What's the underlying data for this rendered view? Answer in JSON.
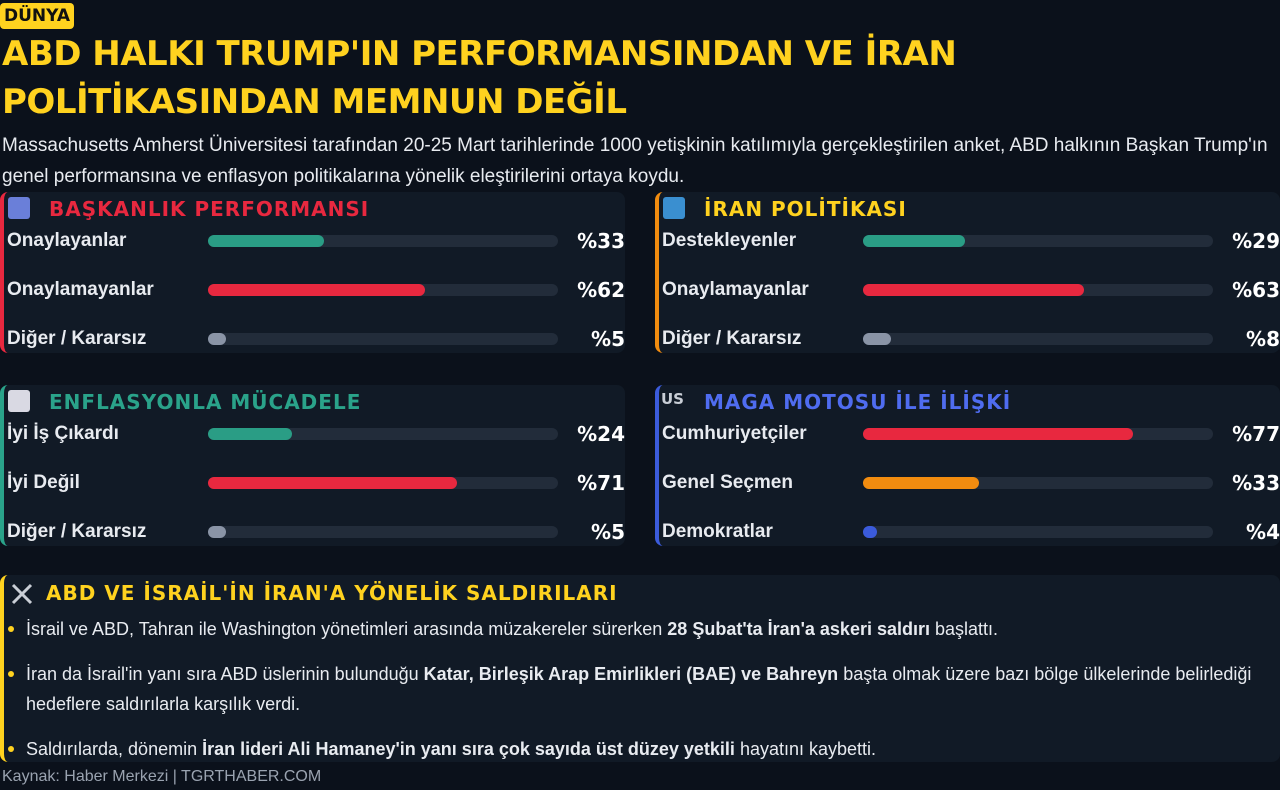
{
  "header": {
    "tag": "DÜNYA",
    "title": "ABD HALKI TRUMP'IN PERFORMANSINDAN VE İRAN POLİTİKASINDAN MEMNUN DEĞİL",
    "lead": "Massachusetts Amherst Üniversitesi tarafından 20-25 Mart tarihlerinde 1000 yetişkinin katılımıyla gerçekleştirilen anket, ABD halkının Başkan Trump'ın genel performansına ve enflasyon politikalarına yönelik eleştirilerini ortaya koydu."
  },
  "chart_data": [
    {
      "type": "bar",
      "title": "BAŞKANLIK PERFORMANSI",
      "title_color": "#e8283f",
      "accent": "#e8283f",
      "categories": [
        "Onaylayanlar",
        "Onaylamayanlar",
        "Diğer / Kararsız"
      ],
      "values": [
        33,
        62,
        5
      ],
      "value_labels": [
        "%33",
        "%62",
        "%5"
      ],
      "colors": [
        "#2a9d85",
        "#e8283f",
        "#8a94a6"
      ],
      "xlim": [
        0,
        100
      ]
    },
    {
      "type": "bar",
      "title": "İRAN POLİTİKASI",
      "title_color": "#ffd21f",
      "accent": "#f28c0f",
      "categories": [
        "Destekleyenler",
        "Onaylamayanlar",
        "Diğer / Kararsız"
      ],
      "values": [
        29,
        63,
        8
      ],
      "value_labels": [
        "%29",
        "%63",
        "%8"
      ],
      "colors": [
        "#2a9d85",
        "#e8283f",
        "#8a94a6"
      ],
      "xlim": [
        0,
        100
      ]
    },
    {
      "type": "bar",
      "title": "ENFLASYONLA MÜCADELE",
      "title_color": "#2aa38a",
      "accent": "#2aa38a",
      "categories": [
        "İyi İş Çıkardı",
        "İyi Değil",
        "Diğer / Kararsız"
      ],
      "values": [
        24,
        71,
        5
      ],
      "value_labels": [
        "%24",
        "%71",
        "%5"
      ],
      "colors": [
        "#2a9d85",
        "#e8283f",
        "#8a94a6"
      ],
      "xlim": [
        0,
        100
      ]
    },
    {
      "type": "bar",
      "title": "MAGA MOTOSU İLE İLİŞKİ",
      "icon": "US",
      "title_color": "#4f6cf0",
      "accent": "#3b5bdb",
      "categories": [
        "Cumhuriyetçiler",
        "Genel Seçmen",
        "Demokratlar"
      ],
      "values": [
        77,
        33,
        4
      ],
      "value_labels": [
        "%77",
        "%33",
        "%4"
      ],
      "colors": [
        "#e8283f",
        "#f28c0f",
        "#3b5bdb"
      ],
      "xlim": [
        0,
        100
      ]
    }
  ],
  "notes": {
    "title": "ABD VE İSRAİL'İN İRAN'A YÖNELİK SALDIRILARI",
    "items": [
      [
        "İsrail ve ABD, Tahran ile Washington yönetimleri arasında müzakereler sürerken ",
        "28 Şubat'ta İran'a askeri saldırı",
        " başlattı."
      ],
      [
        "İran da İsrail'in yanı sıra ABD üslerinin bulunduğu ",
        "Katar, Birleşik Arap Emirlikleri (BAE) ve Bahreyn",
        " başta olmak üzere bazı bölge ülkelerinde belirlediği hedeflere saldırılarla karşılık verdi."
      ],
      [
        "Saldırılarda, dönemin ",
        "İran lideri Ali Hamaney'in yanı sıra çok sayıda üst düzey yetkili",
        " hayatını kaybetti."
      ]
    ]
  },
  "footer": "Kaynak: Haber Merkezi | TGRTHABER.COM"
}
